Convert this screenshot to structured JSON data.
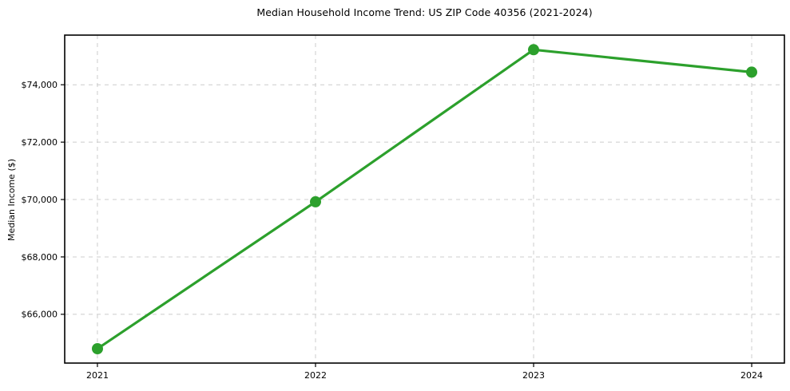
{
  "chart_data": {
    "type": "line",
    "title": "Median Household Income Trend: US ZIP Code 40356 (2021-2024)",
    "xlabel": "",
    "ylabel": "Median Income ($)",
    "categories": [
      "2021",
      "2022",
      "2023",
      "2024"
    ],
    "x": [
      2021,
      2022,
      2023,
      2024
    ],
    "series": [
      {
        "name": "Median Household Income",
        "values": [
          64800,
          69920,
          75220,
          74440
        ],
        "color": "#2ca02c",
        "marker": "circle"
      }
    ],
    "yticks": [
      66000,
      68000,
      70000,
      72000,
      74000
    ],
    "ytick_labels": [
      "$66,000",
      "$68,000",
      "$70,000",
      "$72,000",
      "$74,000"
    ],
    "xlim": [
      2020.85,
      2024.15
    ],
    "ylim": [
      64300,
      75730
    ],
    "grid": true,
    "grid_style": "dashed",
    "legend": "none",
    "colors": {
      "line": "#2ca02c",
      "grid": "#cccccc",
      "spine": "#000000",
      "background": "#ffffff",
      "tick_text": "#000000"
    }
  }
}
